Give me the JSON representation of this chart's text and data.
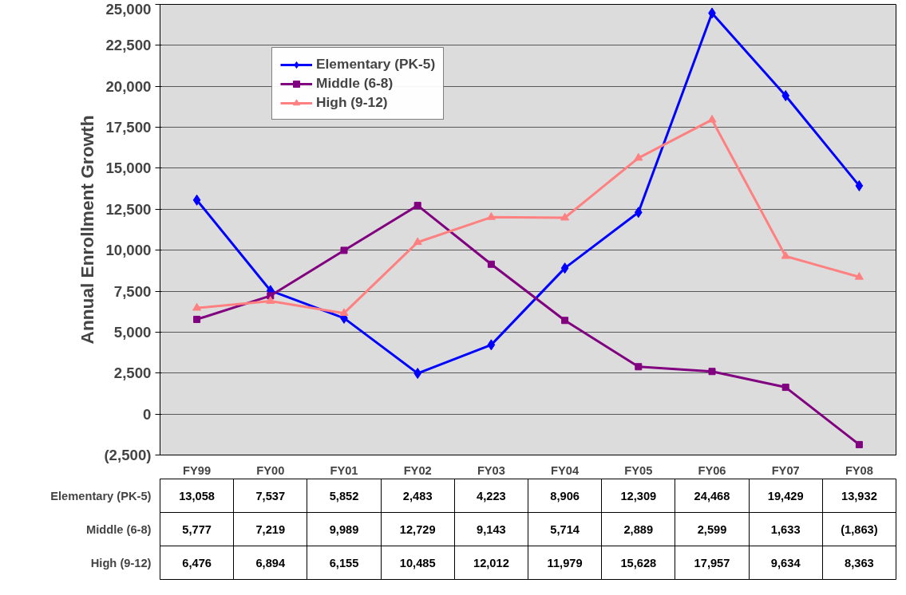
{
  "chart_data": {
    "type": "line",
    "ylabel": "Annual Enrollment Growth",
    "categories": [
      "FY99",
      "FY00",
      "FY01",
      "FY02",
      "FY03",
      "FY04",
      "FY05",
      "FY06",
      "FY07",
      "FY08"
    ],
    "series": [
      {
        "name": "Elementary (PK-5)",
        "color": "#0000ff",
        "marker": "diamond",
        "values": [
          13058,
          7537,
          5852,
          2483,
          4223,
          8906,
          12309,
          24468,
          19429,
          13932
        ],
        "value_labels": [
          "13,058",
          "7,537",
          "5,852",
          "2,483",
          "4,223",
          "8,906",
          "12,309",
          "24,468",
          "19,429",
          "13,932"
        ]
      },
      {
        "name": "Middle (6-8)",
        "color": "#800080",
        "marker": "square",
        "values": [
          5777,
          7219,
          9989,
          12729,
          9143,
          5714,
          2889,
          2599,
          1633,
          -1863
        ],
        "value_labels": [
          "5,777",
          "7,219",
          "9,989",
          "12,729",
          "9,143",
          "5,714",
          "2,889",
          "2,599",
          "1,633",
          "(1,863)"
        ]
      },
      {
        "name": "High (9-12)",
        "color": "#ff8080",
        "marker": "triangle",
        "values": [
          6476,
          6894,
          6155,
          10485,
          12012,
          11979,
          15628,
          17957,
          9634,
          8363
        ],
        "value_labels": [
          "6,476",
          "6,894",
          "6,155",
          "10,485",
          "12,012",
          "11,979",
          "15,628",
          "17,957",
          "9,634",
          "8,363"
        ]
      }
    ],
    "ylim": [
      -2500,
      25000
    ],
    "yticks": [
      {
        "value": -2500,
        "label": "(2,500)"
      },
      0,
      {
        "value": 2500,
        "label": "2,500"
      },
      {
        "value": 5000,
        "label": "5,000"
      },
      {
        "value": 7500,
        "label": "7,500"
      },
      {
        "value": 10000,
        "label": "10,000"
      },
      {
        "value": 12500,
        "label": "12,500"
      },
      {
        "value": 15000,
        "label": "15,000"
      },
      {
        "value": 17500,
        "label": "17,500"
      },
      {
        "value": 20000,
        "label": "20,000"
      },
      {
        "value": 22500,
        "label": "22,500"
      },
      {
        "value": 25000,
        "label": "25,000"
      }
    ],
    "grid": "y",
    "legend": "top left",
    "line_style": "solid"
  }
}
